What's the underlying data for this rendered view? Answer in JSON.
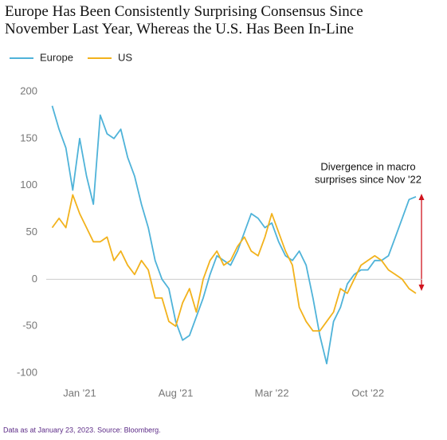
{
  "chart_data": {
    "type": "line",
    "title": [
      "Europe Has Been Consistently Surprising Consensus Since",
      "November Last Year, Whereas the U.S. Has Been In-Line"
    ],
    "categories": [
      null,
      null,
      null,
      null,
      "Jan '21",
      null,
      null,
      null,
      null,
      null,
      null,
      null,
      null,
      null,
      null,
      null,
      null,
      null,
      "Aug '21",
      null,
      null,
      null,
      null,
      null,
      null,
      null,
      null,
      null,
      null,
      null,
      null,
      null,
      "Mar '22",
      null,
      null,
      null,
      null,
      null,
      null,
      null,
      null,
      null,
      null,
      null,
      null,
      null,
      "Oct '22",
      null,
      null,
      null,
      null,
      null,
      null,
      null
    ],
    "series": [
      {
        "name": "Europe",
        "color": "#4fb3d9",
        "values": [
          185,
          160,
          140,
          95,
          150,
          110,
          80,
          175,
          155,
          150,
          160,
          130,
          110,
          80,
          55,
          20,
          0,
          -10,
          -45,
          -65,
          -60,
          -40,
          -20,
          5,
          25,
          20,
          15,
          30,
          50,
          70,
          65,
          55,
          60,
          40,
          25,
          20,
          30,
          15,
          -20,
          -60,
          -90,
          -45,
          -30,
          -5,
          5,
          10,
          10,
          20,
          20,
          25,
          45,
          65,
          85,
          88
        ]
      },
      {
        "name": "US",
        "color": "#f2b21c",
        "values": [
          55,
          65,
          55,
          90,
          70,
          55,
          40,
          40,
          45,
          20,
          30,
          15,
          5,
          20,
          10,
          -20,
          -20,
          -45,
          -50,
          -25,
          -10,
          -35,
          0,
          20,
          30,
          15,
          20,
          35,
          45,
          30,
          25,
          45,
          70,
          50,
          30,
          15,
          -30,
          -45,
          -55,
          -55,
          -45,
          -35,
          -10,
          -15,
          0,
          15,
          20,
          25,
          20,
          10,
          5,
          0,
          -10,
          -15
        ]
      }
    ],
    "ylim": [
      -100,
      200
    ],
    "yticks": [
      -100,
      -50,
      0,
      50,
      100,
      150,
      200
    ],
    "zero_line": true,
    "annotation": [
      "Divergence in macro",
      "surprises since Nov '22"
    ],
    "footnote": "Data as at January 23, 2023. Source: Bloomberg."
  }
}
